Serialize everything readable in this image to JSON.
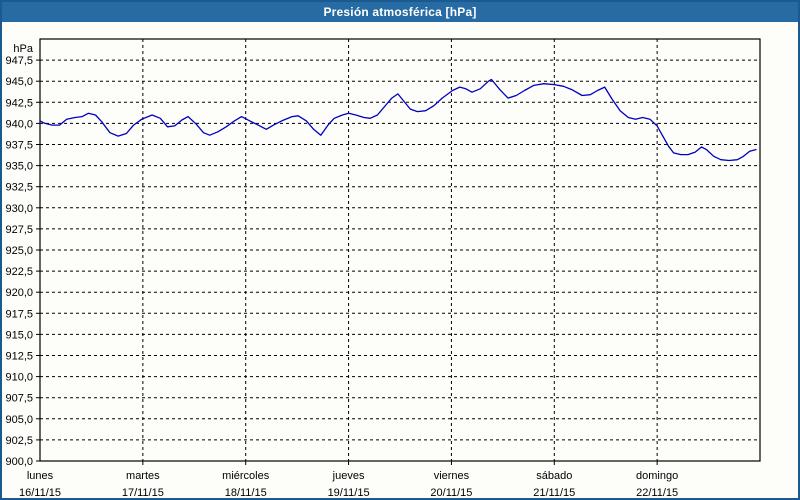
{
  "window": {
    "title": "Presión atmosférica [hPa]"
  },
  "colors": {
    "title_bar_bg": "#266ba3",
    "window_border": "#1b5a8e",
    "plot_bg": "#fdfdfa",
    "grid": "#000000",
    "axis": "#000000",
    "line": "#0000bf",
    "title_text": "#ffffff"
  },
  "chart_data": {
    "type": "line",
    "title": "Presión atmosférica [hPa]",
    "unit_label": "hPa",
    "grid": "dashed",
    "legend": "none",
    "y_axis": {
      "min": 900,
      "max": 950,
      "tick_step": 2.5,
      "tick_labels": [
        "947,5",
        "945,0",
        "942,5",
        "940,0",
        "937,5",
        "935,0",
        "932,5",
        "930,0",
        "927,5",
        "925,0",
        "922,5",
        "920,0",
        "917,5",
        "915,0",
        "912,5",
        "910,0",
        "907,5",
        "905,0",
        "902,5",
        "900,0"
      ]
    },
    "x_axis": {
      "days_shown": 7,
      "boundaries": [
        {
          "name": "lunes",
          "date": "16/11/15"
        },
        {
          "name": "martes",
          "date": "17/11/15"
        },
        {
          "name": "miércoles",
          "date": "18/11/15"
        },
        {
          "name": "jueves",
          "date": "19/11/15"
        },
        {
          "name": "viernes",
          "date": "20/11/15"
        },
        {
          "name": "sábado",
          "date": "21/11/15"
        },
        {
          "name": "domingo",
          "date": "22/11/15"
        }
      ]
    },
    "series": [
      {
        "name": "Presión atmosférica",
        "color": "#0000bf",
        "points": [
          [
            0.0,
            940.3
          ],
          [
            0.05,
            940.0
          ],
          [
            0.12,
            939.8
          ],
          [
            0.19,
            939.8
          ],
          [
            0.26,
            940.5
          ],
          [
            0.34,
            940.7
          ],
          [
            0.41,
            940.8
          ],
          [
            0.47,
            941.2
          ],
          [
            0.54,
            941.0
          ],
          [
            0.6,
            940.2
          ],
          [
            0.68,
            938.9
          ],
          [
            0.76,
            938.5
          ],
          [
            0.84,
            938.8
          ],
          [
            0.91,
            939.8
          ],
          [
            0.99,
            940.5
          ],
          [
            1.09,
            941.0
          ],
          [
            1.17,
            940.6
          ],
          [
            1.24,
            939.6
          ],
          [
            1.31,
            939.7
          ],
          [
            1.38,
            940.4
          ],
          [
            1.44,
            940.8
          ],
          [
            1.52,
            939.9
          ],
          [
            1.59,
            938.9
          ],
          [
            1.65,
            938.6
          ],
          [
            1.73,
            939.0
          ],
          [
            1.81,
            939.6
          ],
          [
            1.89,
            940.3
          ],
          [
            1.96,
            940.8
          ],
          [
            2.04,
            940.3
          ],
          [
            2.12,
            939.8
          ],
          [
            2.2,
            939.3
          ],
          [
            2.27,
            939.8
          ],
          [
            2.35,
            940.3
          ],
          [
            2.45,
            940.8
          ],
          [
            2.51,
            940.9
          ],
          [
            2.59,
            940.3
          ],
          [
            2.66,
            939.3
          ],
          [
            2.73,
            938.6
          ],
          [
            2.8,
            939.8
          ],
          [
            2.86,
            940.6
          ],
          [
            2.94,
            941.0
          ],
          [
            3.0,
            941.2
          ],
          [
            3.07,
            941.0
          ],
          [
            3.15,
            940.7
          ],
          [
            3.21,
            940.6
          ],
          [
            3.28,
            941.0
          ],
          [
            3.35,
            942.0
          ],
          [
            3.42,
            943.0
          ],
          [
            3.48,
            943.5
          ],
          [
            3.54,
            942.6
          ],
          [
            3.6,
            941.7
          ],
          [
            3.67,
            941.4
          ],
          [
            3.75,
            941.5
          ],
          [
            3.83,
            942.1
          ],
          [
            3.91,
            943.0
          ],
          [
            4.01,
            943.9
          ],
          [
            4.08,
            944.3
          ],
          [
            4.14,
            944.1
          ],
          [
            4.2,
            943.7
          ],
          [
            4.28,
            944.1
          ],
          [
            4.36,
            945.0
          ],
          [
            4.39,
            945.2
          ],
          [
            4.47,
            944.0
          ],
          [
            4.55,
            943.0
          ],
          [
            4.63,
            943.3
          ],
          [
            4.71,
            943.9
          ],
          [
            4.8,
            944.5
          ],
          [
            4.9,
            944.7
          ],
          [
            5.0,
            944.6
          ],
          [
            5.09,
            944.4
          ],
          [
            5.17,
            944.0
          ],
          [
            5.27,
            943.3
          ],
          [
            5.35,
            943.4
          ],
          [
            5.42,
            943.9
          ],
          [
            5.49,
            944.3
          ],
          [
            5.56,
            942.9
          ],
          [
            5.64,
            941.5
          ],
          [
            5.72,
            940.7
          ],
          [
            5.79,
            940.5
          ],
          [
            5.86,
            940.7
          ],
          [
            5.93,
            940.5
          ],
          [
            6.0,
            939.7
          ],
          [
            6.05,
            938.6
          ],
          [
            6.11,
            937.3
          ],
          [
            6.16,
            936.5
          ],
          [
            6.23,
            936.3
          ],
          [
            6.3,
            936.3
          ],
          [
            6.37,
            936.6
          ],
          [
            6.43,
            937.2
          ],
          [
            6.48,
            936.9
          ],
          [
            6.55,
            936.1
          ],
          [
            6.62,
            935.7
          ],
          [
            6.7,
            935.6
          ],
          [
            6.78,
            935.7
          ],
          [
            6.84,
            936.1
          ],
          [
            6.9,
            936.7
          ],
          [
            6.96,
            936.9
          ]
        ]
      }
    ]
  }
}
